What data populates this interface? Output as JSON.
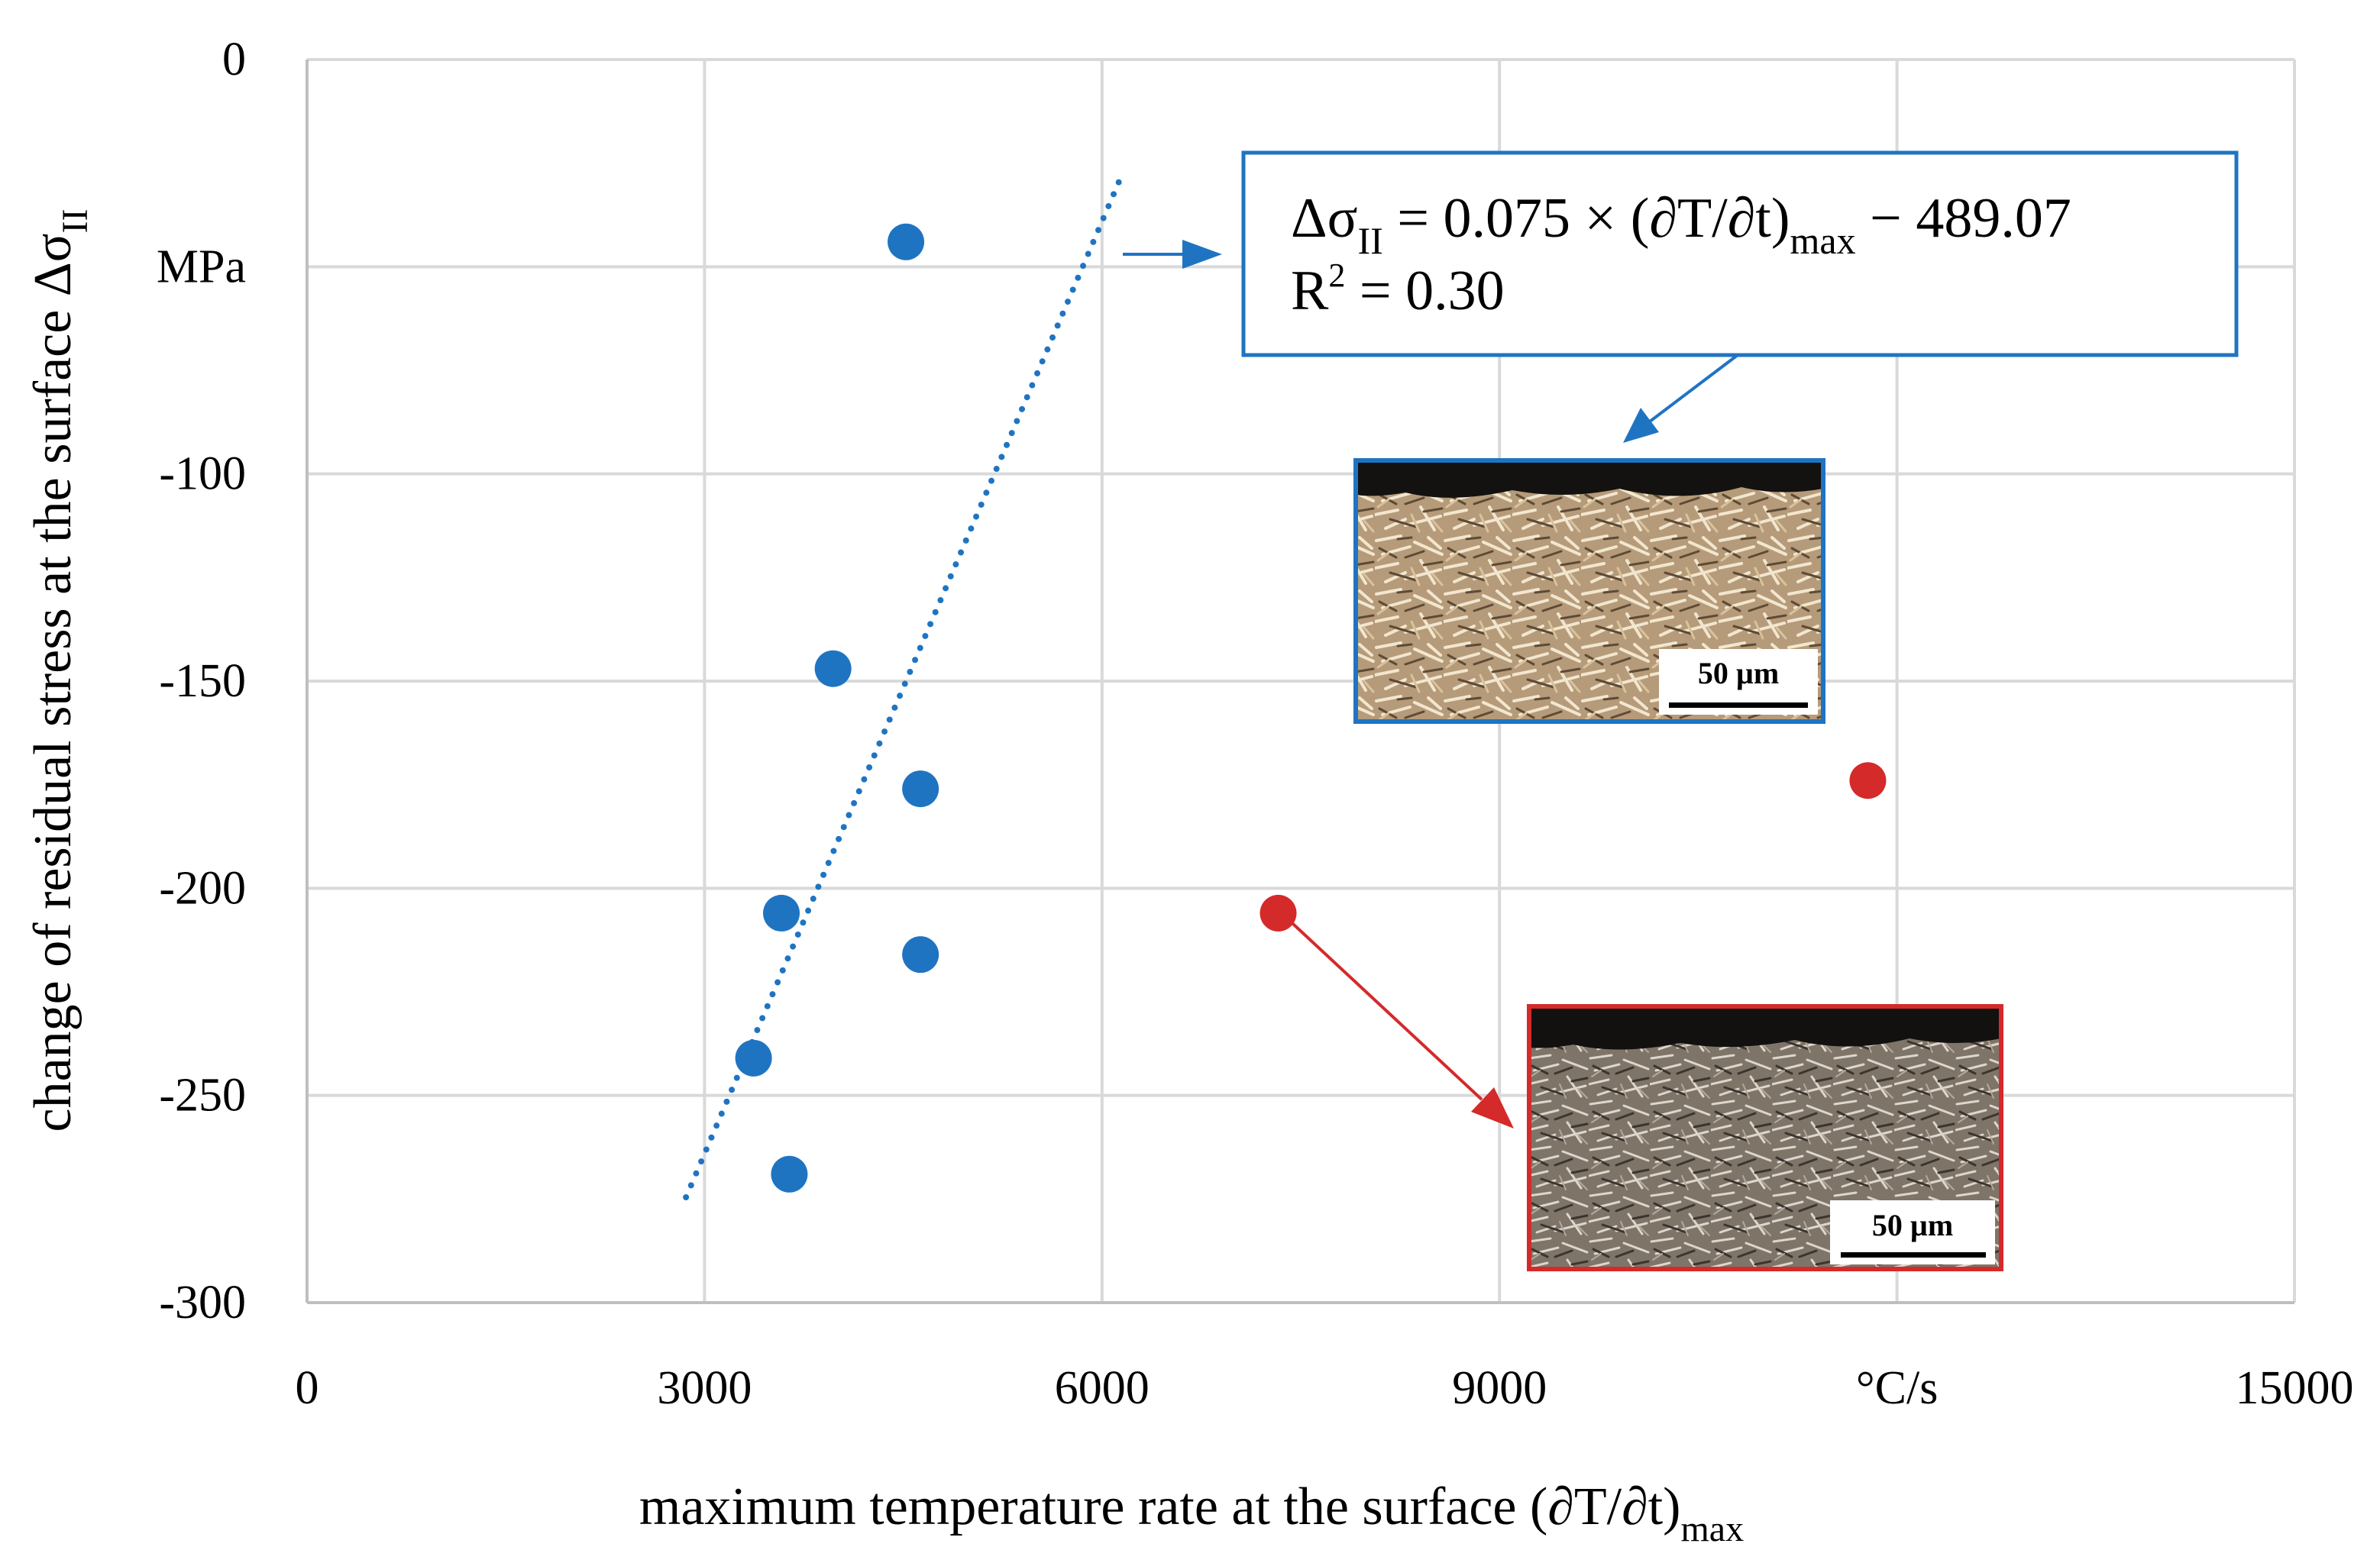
{
  "chart_data": {
    "type": "scatter",
    "title": "",
    "xlabel": {
      "text": "maximum temperature rate at the surface (∂T/∂t)",
      "subscript": "max"
    },
    "ylabel": {
      "text": "change of residual stress at the surface Δσ",
      "subscript": "II"
    },
    "xlim": [
      0,
      15000
    ],
    "ylim": [
      -300,
      0
    ],
    "x_ticks": [
      {
        "value": 0,
        "label": "0"
      },
      {
        "value": 3000,
        "label": "3000"
      },
      {
        "value": 6000,
        "label": "6000"
      },
      {
        "value": 9000,
        "label": "9000"
      },
      {
        "value": 12000,
        "label": "°C/s"
      },
      {
        "value": 15000,
        "label": "15000"
      }
    ],
    "y_ticks": [
      {
        "value": 0,
        "label": "0"
      },
      {
        "value": -50,
        "label": "MPa"
      },
      {
        "value": -100,
        "label": "-100"
      },
      {
        "value": -150,
        "label": "-150"
      },
      {
        "value": -200,
        "label": "-200"
      },
      {
        "value": -250,
        "label": "-250"
      },
      {
        "value": -300,
        "label": "-300"
      }
    ],
    "grid": true,
    "series": [
      {
        "name": "blue",
        "color": "#1f74c2",
        "points": [
          {
            "x": 4520,
            "y": -44
          },
          {
            "x": 3970,
            "y": -147
          },
          {
            "x": 4630,
            "y": -176
          },
          {
            "x": 3580,
            "y": -206
          },
          {
            "x": 4630,
            "y": -216
          },
          {
            "x": 3370,
            "y": -241
          },
          {
            "x": 3640,
            "y": -269
          }
        ]
      },
      {
        "name": "red",
        "color": "#d42a2a",
        "points": [
          {
            "x": 7330,
            "y": -206
          },
          {
            "x": 11780,
            "y": -174
          }
        ]
      }
    ],
    "trendline": {
      "color": "#1f74c2",
      "style": "dotted",
      "slope": 0.075,
      "intercept": -489.07,
      "x_range": [
        2860,
        6130
      ]
    },
    "equation": {
      "line1": {
        "lhs": "Δσ",
        "lhs_sub": "II",
        "mid": " = 0.075 × (∂T/∂t)",
        "mid_sub": "max",
        "rhs": " − 489.07"
      },
      "line2": {
        "text": "R",
        "sup": "2",
        "rhs": " = 0.30"
      },
      "border_color": "#1f74c2"
    },
    "insets": [
      {
        "name": "blue-micrograph",
        "border_color": "#1f74c2",
        "scale_label": "50 µm"
      },
      {
        "name": "red-micrograph",
        "border_color": "#d42a2a",
        "scale_label": "50 µm"
      }
    ]
  }
}
